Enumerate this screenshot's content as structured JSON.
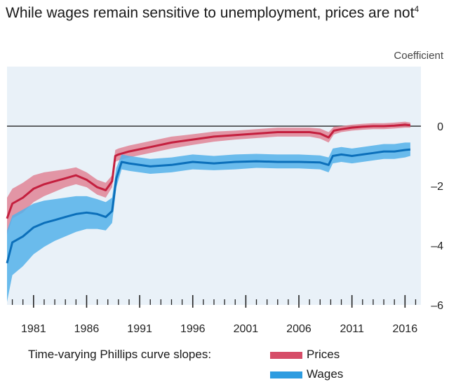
{
  "title": "While wages remain sensitive to unemployment, prices are not",
  "title_footnote": "4",
  "chart_data": {
    "type": "area",
    "ylabel": "Coefficient",
    "ylim": [
      -6,
      2
    ],
    "y_ticks": [
      0,
      -2,
      -4,
      -6
    ],
    "y_tick_labels": [
      "0",
      "–2",
      "–4",
      "–6"
    ],
    "xlim": [
      1978.5,
      2017.5
    ],
    "x_ticks": [
      1981,
      1986,
      1991,
      1996,
      2001,
      2006,
      2011,
      2016
    ],
    "x_tick_labels": [
      "1981",
      "1986",
      "1991",
      "1996",
      "2001",
      "2006",
      "2011",
      "2016"
    ],
    "reference_line_y": 0,
    "series": [
      {
        "name": "Prices",
        "color": "#c41f3e",
        "band_color": "#e08597",
        "x": [
          1978.5,
          1979,
          1980,
          1981,
          1982,
          1983,
          1984,
          1985,
          1986,
          1987,
          1987.8,
          1988.4,
          1988.7,
          1989,
          1990,
          1992,
          1994,
          1996,
          1998,
          2000,
          2002,
          2004,
          2006,
          2007,
          2008,
          2008.8,
          2009.3,
          2010,
          2011,
          2012,
          2013,
          2014,
          2015,
          2016,
          2016.5
        ],
        "y": [
          -3.1,
          -2.6,
          -2.4,
          -2.1,
          -1.95,
          -1.85,
          -1.75,
          -1.65,
          -1.8,
          -2.05,
          -2.15,
          -1.85,
          -1.0,
          -0.95,
          -0.85,
          -0.7,
          -0.55,
          -0.45,
          -0.35,
          -0.3,
          -0.25,
          -0.2,
          -0.2,
          -0.2,
          -0.25,
          -0.38,
          -0.15,
          -0.1,
          -0.05,
          -0.02,
          0.0,
          0.0,
          0.02,
          0.05,
          0.03
        ],
        "lower": [
          -3.65,
          -3.1,
          -2.9,
          -2.55,
          -2.35,
          -2.2,
          -2.05,
          -1.95,
          -2.05,
          -2.3,
          -2.4,
          -2.05,
          -1.2,
          -1.15,
          -1.05,
          -0.9,
          -0.75,
          -0.63,
          -0.52,
          -0.45,
          -0.4,
          -0.35,
          -0.35,
          -0.35,
          -0.42,
          -0.55,
          -0.28,
          -0.2,
          -0.15,
          -0.12,
          -0.1,
          -0.1,
          -0.08,
          -0.05,
          -0.05
        ],
        "upper": [
          -2.4,
          -2.1,
          -1.9,
          -1.65,
          -1.55,
          -1.5,
          -1.45,
          -1.38,
          -1.55,
          -1.8,
          -1.9,
          -1.65,
          -0.8,
          -0.75,
          -0.65,
          -0.5,
          -0.35,
          -0.27,
          -0.18,
          -0.15,
          -0.1,
          -0.05,
          -0.05,
          -0.05,
          -0.08,
          -0.2,
          -0.02,
          0.0,
          0.05,
          0.08,
          0.1,
          0.1,
          0.12,
          0.15,
          0.12
        ]
      },
      {
        "name": "Wages",
        "color": "#0b6fba",
        "band_color": "#53b1ea",
        "x": [
          1978.5,
          1979,
          1980,
          1981,
          1982,
          1983,
          1984,
          1985,
          1986,
          1987,
          1987.8,
          1988.4,
          1988.8,
          1989.3,
          1990,
          1992,
          1994,
          1996,
          1998,
          2000,
          2002,
          2004,
          2006,
          2008,
          2008.8,
          2009.2,
          2010,
          2011,
          2012,
          2013,
          2014,
          2015,
          2016,
          2016.5
        ],
        "y": [
          -4.6,
          -3.9,
          -3.7,
          -3.4,
          -3.25,
          -3.15,
          -3.05,
          -2.95,
          -2.9,
          -2.95,
          -3.05,
          -2.85,
          -1.75,
          -1.2,
          -1.25,
          -1.35,
          -1.3,
          -1.2,
          -1.25,
          -1.2,
          -1.18,
          -1.2,
          -1.2,
          -1.22,
          -1.3,
          -1.0,
          -0.95,
          -1.0,
          -0.95,
          -0.9,
          -0.85,
          -0.85,
          -0.8,
          -0.78
        ],
        "lower": [
          -5.9,
          -5.0,
          -4.7,
          -4.3,
          -4.05,
          -3.85,
          -3.7,
          -3.55,
          -3.45,
          -3.45,
          -3.5,
          -3.25,
          -2.05,
          -1.45,
          -1.5,
          -1.6,
          -1.55,
          -1.45,
          -1.48,
          -1.45,
          -1.4,
          -1.42,
          -1.42,
          -1.45,
          -1.55,
          -1.25,
          -1.2,
          -1.25,
          -1.2,
          -1.15,
          -1.1,
          -1.1,
          -1.05,
          -1.0
        ],
        "upper": [
          -3.5,
          -3.0,
          -2.8,
          -2.6,
          -2.5,
          -2.45,
          -2.4,
          -2.35,
          -2.35,
          -2.45,
          -2.55,
          -2.4,
          -1.4,
          -0.95,
          -1.0,
          -1.1,
          -1.05,
          -0.95,
          -1.0,
          -0.95,
          -0.93,
          -0.95,
          -0.95,
          -0.98,
          -1.05,
          -0.75,
          -0.7,
          -0.75,
          -0.7,
          -0.65,
          -0.6,
          -0.6,
          -0.55,
          -0.55
        ]
      }
    ]
  },
  "legend": {
    "label": "Time-varying Phillips curve slopes:",
    "items": [
      {
        "name": "Prices",
        "swatch_color": "#d64d68"
      },
      {
        "name": "Wages",
        "swatch_color": "#2e9ce0"
      }
    ]
  }
}
